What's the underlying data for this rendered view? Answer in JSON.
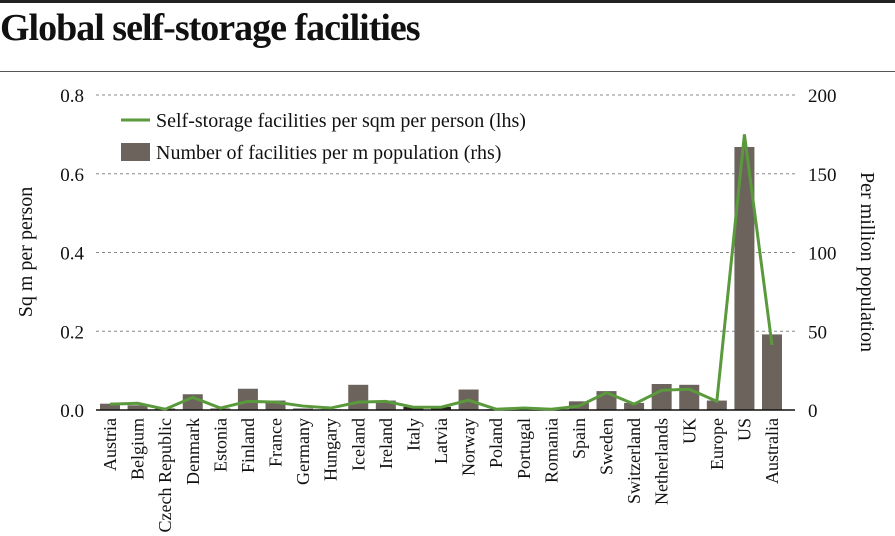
{
  "title": "Global self-storage facilities",
  "chart_data": {
    "type": "bar+line",
    "title": "Global self-storage facilities",
    "categories": [
      "Austria",
      "Belgium",
      "Czech Republic",
      "Denmark",
      "Estonia",
      "Finland",
      "France",
      "Germany",
      "Hungary",
      "Iceland",
      "Ireland",
      "Italy",
      "Latvia",
      "Norway",
      "Poland",
      "Portugal",
      "Romania",
      "Spain",
      "Sweden",
      "Switzerland",
      "Netherlands",
      "UK",
      "Europe",
      "US",
      "Australia"
    ],
    "series": [
      {
        "name": "Self-storage facilities per sqm per person (lhs)",
        "type": "line",
        "axis": "left",
        "color": "#5a9a3c",
        "values": [
          0.015,
          0.017,
          0.002,
          0.032,
          0.005,
          0.022,
          0.02,
          0.01,
          0.005,
          0.02,
          0.022,
          0.007,
          0.007,
          0.025,
          0.002,
          0.005,
          0.002,
          0.01,
          0.044,
          0.015,
          0.05,
          0.053,
          0.022,
          0.7,
          0.165
        ]
      },
      {
        "name": "Number of facilities per m population (rhs)",
        "type": "bar",
        "axis": "right",
        "color": "#6b635c",
        "values": [
          4,
          3,
          1,
          10,
          1,
          13.5,
          6,
          1,
          0.5,
          16,
          6,
          2,
          2,
          13,
          0.5,
          0.5,
          0.5,
          5.5,
          12,
          4.5,
          16.5,
          16,
          6,
          167,
          48
        ]
      }
    ],
    "highlight_bar_color": "#2b2522",
    "highlight_categories": [
      "Italy",
      "Latvia"
    ],
    "ylabel_left": "Sq m per person",
    "ylabel_right": "Per million population",
    "ylim_left": [
      0,
      0.8
    ],
    "ylim_right": [
      0,
      200
    ],
    "yticks_left": [
      "0.0",
      "0.2",
      "0.4",
      "0.6",
      "0.8"
    ],
    "yticks_right": [
      "0",
      "50",
      "100",
      "150",
      "200"
    ],
    "grid": "dashed horizontal",
    "legend": "top-left"
  }
}
